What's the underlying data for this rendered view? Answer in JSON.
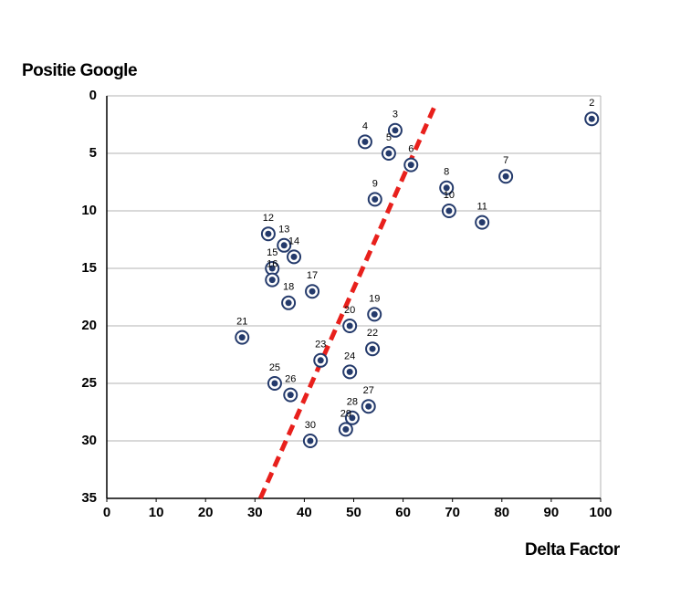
{
  "chart_data": {
    "type": "scatter",
    "y_title": "Positie Google",
    "x_title": "Delta Factor",
    "x": [
      98.2,
      58.4,
      52.3,
      57.1,
      61.6,
      80.8,
      68.8,
      54.3,
      69.3,
      76.0,
      32.7,
      35.9,
      37.9,
      33.5,
      33.5,
      41.6,
      36.8,
      54.2,
      49.2,
      27.4,
      53.8,
      43.3,
      49.2,
      34.0,
      37.2,
      53.0,
      49.7,
      48.4,
      41.2
    ],
    "y": [
      2,
      3,
      4,
      5,
      6,
      7,
      8,
      9,
      10,
      11,
      12,
      13,
      14,
      15,
      16,
      17,
      18,
      19,
      20,
      21,
      22,
      23,
      24,
      25,
      26,
      27,
      28,
      29,
      30
    ],
    "point_labels": [
      2,
      3,
      4,
      5,
      6,
      7,
      8,
      9,
      10,
      11,
      12,
      13,
      14,
      15,
      16,
      17,
      18,
      19,
      20,
      21,
      22,
      23,
      24,
      25,
      26,
      27,
      28,
      29,
      30
    ],
    "color": "#243a6b",
    "trend": {
      "x": [
        31.1,
        66.4
      ],
      "y": [
        35,
        0.9
      ],
      "color": "#e8201c"
    },
    "xlim": [
      0,
      100
    ],
    "xticks": [
      0,
      10,
      20,
      30,
      40,
      50,
      60,
      70,
      80,
      90,
      100
    ],
    "ylim": [
      0,
      35
    ],
    "yticks": [
      0,
      5,
      10,
      15,
      20,
      25,
      30,
      35
    ],
    "y_inverted": true,
    "grid": true
  }
}
